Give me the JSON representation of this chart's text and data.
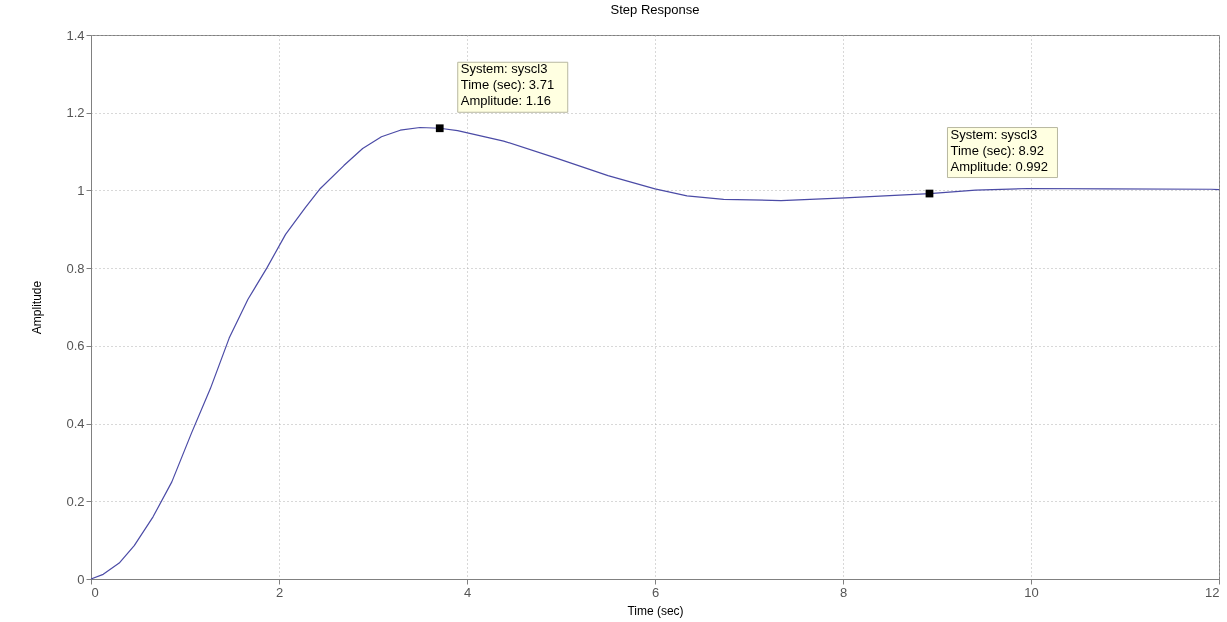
{
  "chart_data": {
    "type": "line",
    "title": "Step Response",
    "xlabel": "Time (sec)",
    "ylabel": "Amplitude",
    "x": [
      0,
      0.13,
      0.3,
      0.46,
      0.66,
      0.86,
      1.07,
      1.27,
      1.47,
      1.67,
      1.87,
      2.07,
      2.28,
      2.44,
      2.69,
      2.89,
      3.09,
      3.29,
      3.5,
      3.71,
      3.9,
      4.39,
      4.95,
      5.5,
      6.0,
      6.34,
      6.73,
      7.34,
      8.02,
      8.92,
      9.41,
      9.97,
      10.8,
      11.92,
      12
    ],
    "series": [
      {
        "color": "#4b4ba6",
        "values": [
          0,
          0.012,
          0.041,
          0.086,
          0.16,
          0.25,
          0.376,
          0.49,
          0.62,
          0.72,
          0.8,
          0.887,
          0.956,
          1.005,
          1.064,
          1.108,
          1.138,
          1.155,
          1.162,
          1.16,
          1.154,
          1.127,
          1.083,
          1.038,
          1.004,
          0.986,
          0.977,
          0.974,
          0.981,
          0.992,
          1.001,
          1.005,
          1.004,
          1.003,
          1.002
        ]
      }
    ],
    "xlim": [
      0,
      12
    ],
    "ylim": [
      0,
      1.4
    ],
    "xticks": [
      0,
      2,
      4,
      6,
      8,
      10,
      12
    ],
    "yticks": [
      0,
      0.2,
      0.4,
      0.6,
      0.8,
      1,
      1.2,
      1.4
    ],
    "grid": true,
    "line_style": "solid",
    "annotations": [
      {
        "text": "System: syscl3\nTime (sec): 3.71\nAmplitude: 1.16",
        "x": 3.71,
        "y": 1.16
      },
      {
        "text": "System: syscl3\nTime (sec): 8.92\nAmplitude: 0.992",
        "x": 8.92,
        "y": 0.992
      }
    ]
  }
}
